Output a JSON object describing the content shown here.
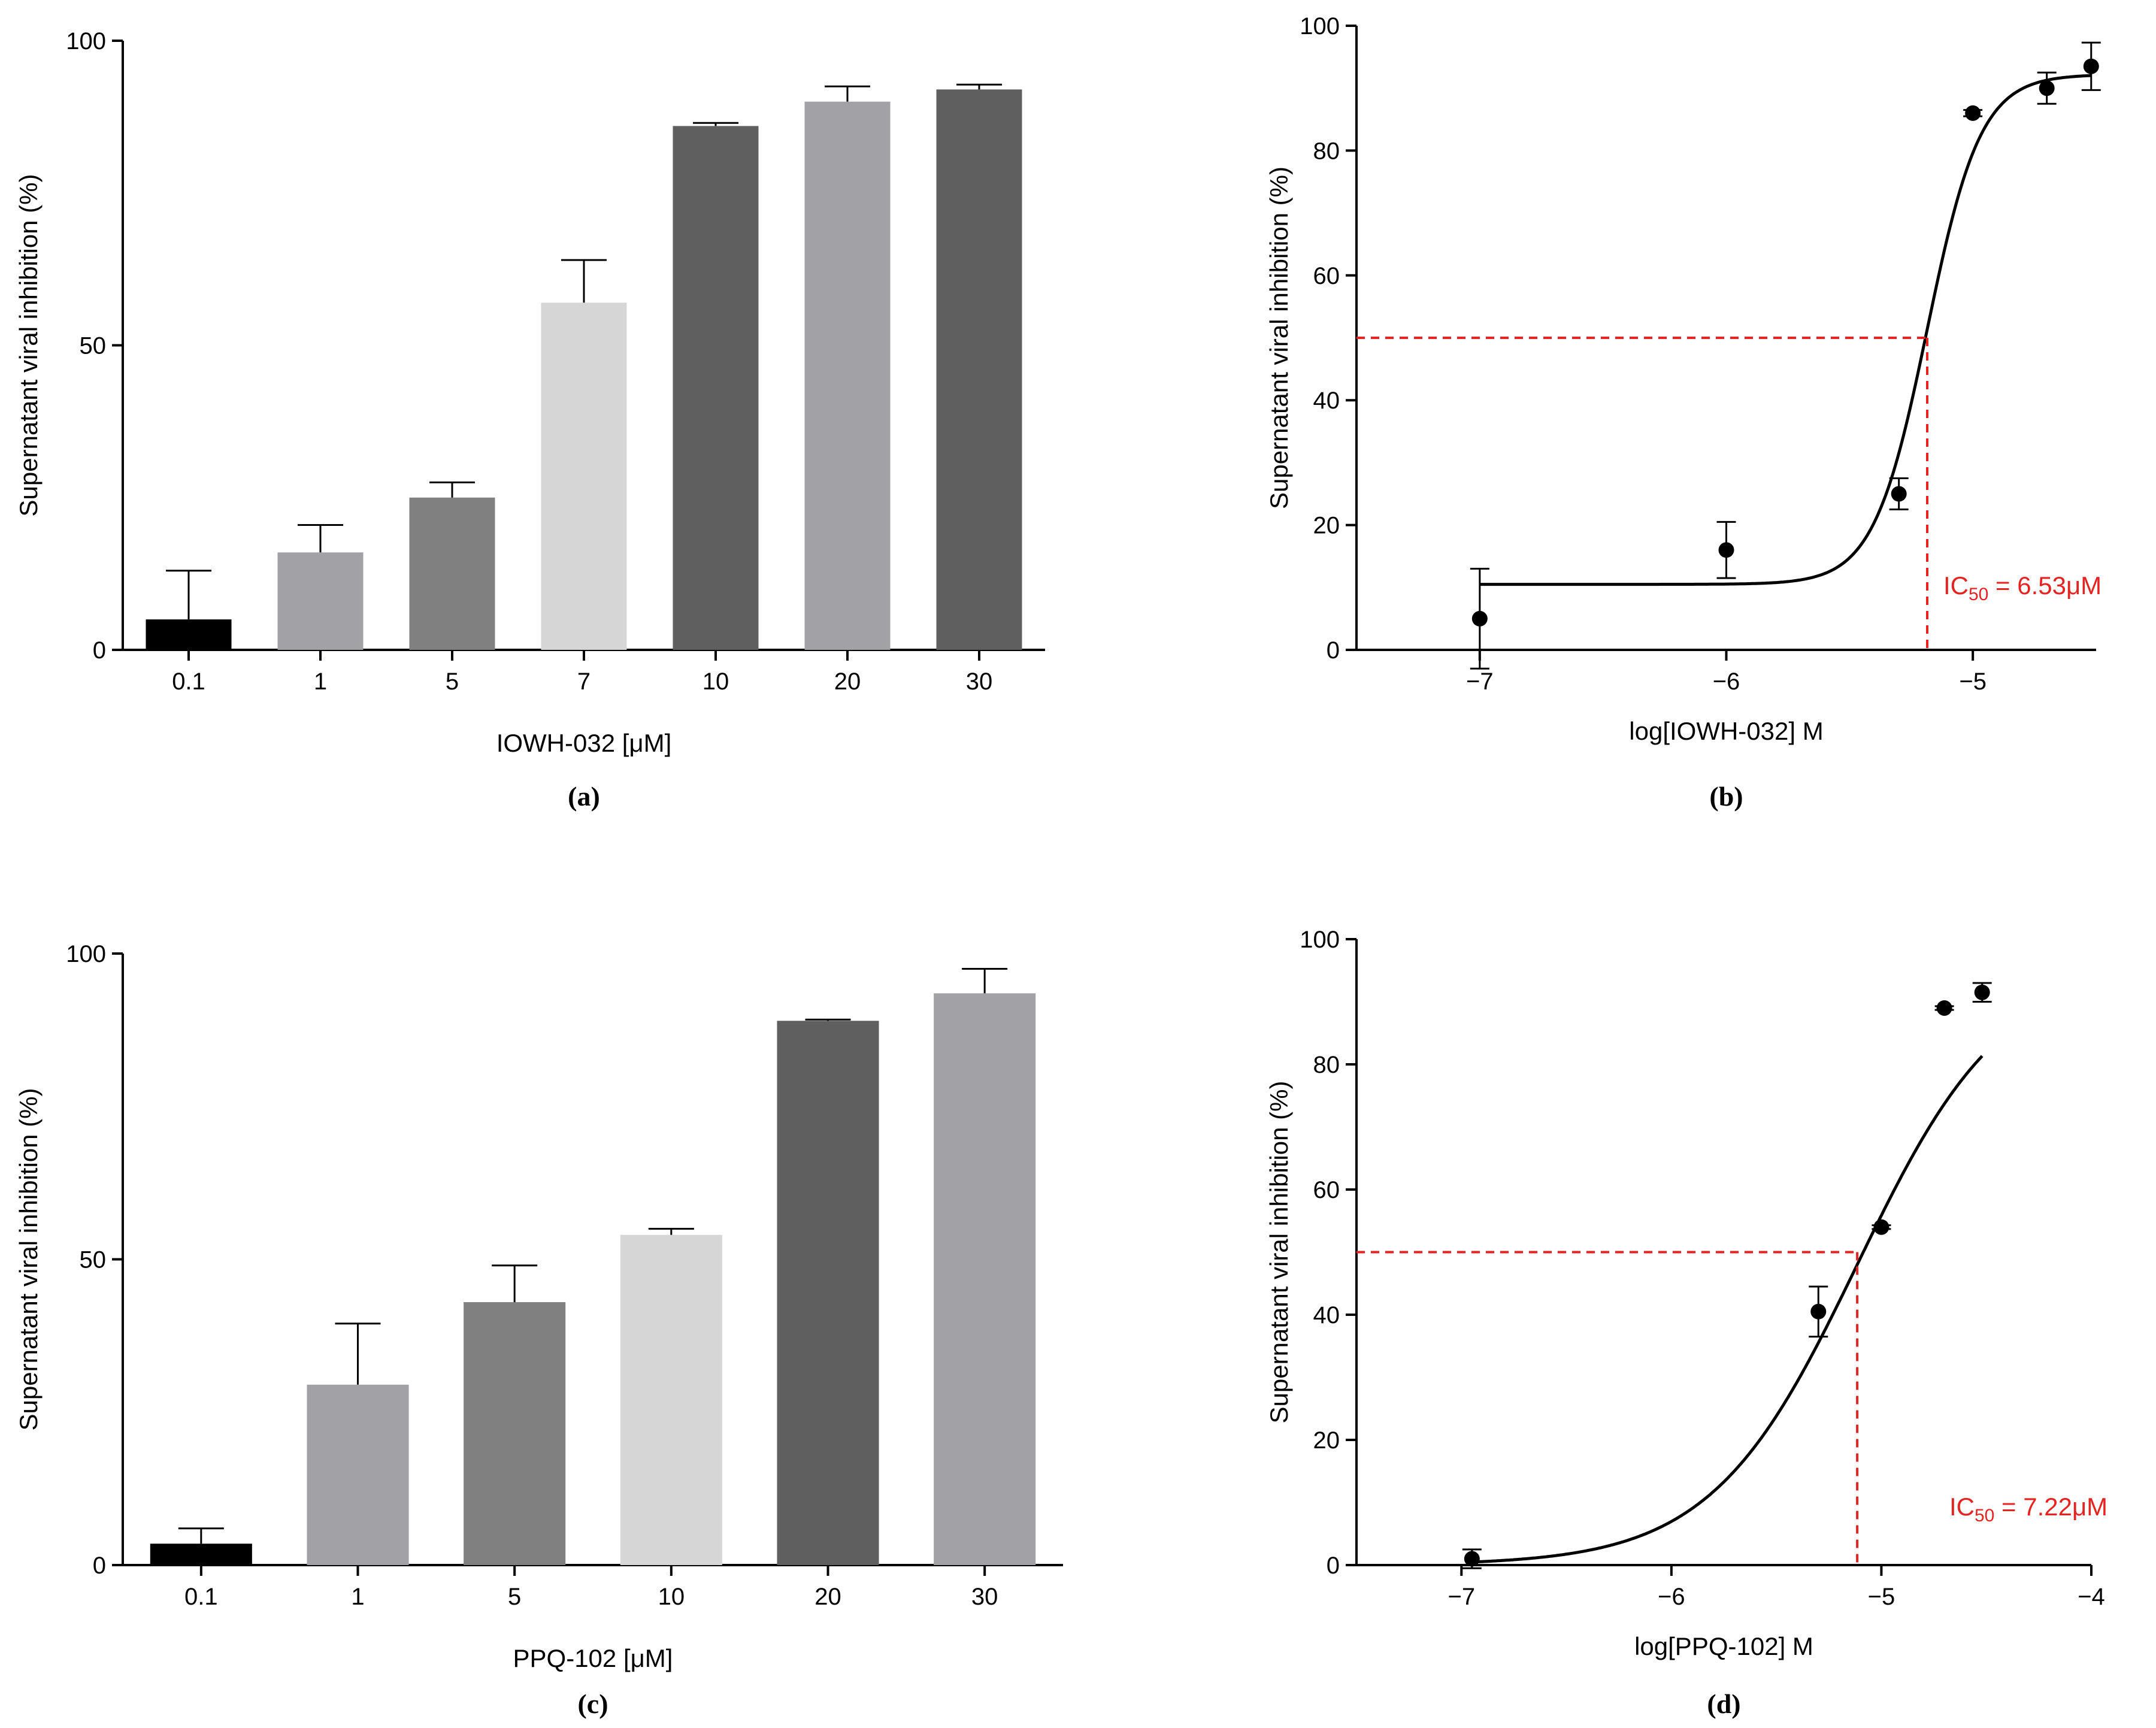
{
  "chart_data": [
    {
      "type": "bar",
      "panel_label": "(a)",
      "categories": [
        "0.1",
        "1",
        "5",
        "7",
        "10",
        "20",
        "30"
      ],
      "values": [
        5,
        16,
        25,
        57,
        86,
        90,
        92
      ],
      "errors": [
        8,
        4.5,
        2.5,
        7,
        0.5,
        2.5,
        0.8
      ],
      "bar_colors": [
        "#000000",
        "#a2a1a6",
        "#808080",
        "#d6d6d6",
        "#5f5f5f",
        "#a2a1a6",
        "#5f5f5f"
      ],
      "xlabel": "IOWH-032 [μM]",
      "ylabel": "Supernatant viral inhibition (%)",
      "ylim": [
        0,
        100
      ],
      "yticks": [
        "0",
        "50",
        "100"
      ]
    },
    {
      "type": "scatter",
      "panel_label": "(b)",
      "x": [
        -7,
        -6,
        -5.3,
        -5,
        -4.7,
        -4.52
      ],
      "y": [
        5,
        16,
        25,
        86,
        90,
        93.5
      ],
      "errors": [
        8,
        4.5,
        2.5,
        0.5,
        2.5,
        3.8
      ],
      "fit": {
        "bottom": 10.5,
        "top": 92.2,
        "log_ic50": -5.185,
        "hill": 4
      },
      "ic50_label": {
        "prefix": "IC",
        "sub": "50",
        "suffix": " = 6.53μM"
      },
      "xlabel": "log[IOWH-032] M",
      "ylabel": "Supernatant viral inhibition (%)",
      "xlim": [
        -7.5,
        -4.5
      ],
      "ylim": [
        0,
        100
      ],
      "xticks": [
        "−7",
        "−6",
        "−5"
      ],
      "yticks": [
        "0",
        "20",
        "40",
        "60",
        "80",
        "100"
      ]
    },
    {
      "type": "bar",
      "panel_label": "(c)",
      "categories": [
        "0.1",
        "1",
        "5",
        "10",
        "20",
        "30"
      ],
      "values": [
        3.5,
        29.5,
        43,
        54,
        89,
        93.5
      ],
      "errors": [
        2.5,
        10,
        6,
        1,
        0.2,
        4
      ],
      "bar_colors": [
        "#000000",
        "#a2a1a6",
        "#808080",
        "#d6d6d6",
        "#5f5f5f",
        "#a2a1a6"
      ],
      "xlabel": "PPQ-102 [μM]",
      "ylabel": "Supernatant viral inhibition (%)",
      "ylim": [
        0,
        100
      ],
      "yticks": [
        "0",
        "50",
        "100"
      ]
    },
    {
      "type": "scatter",
      "panel_label": "(d)",
      "x": [
        -6.95,
        -5.3,
        -5,
        -4.7,
        -4.52
      ],
      "y": [
        1,
        40.5,
        54,
        89,
        91.5
      ],
      "errors": [
        1.5,
        4,
        0.3,
        0.3,
        1.5
      ],
      "fit": {
        "bottom": 0,
        "top": 96,
        "log_ic50": -5.115,
        "hill": 1.25
      },
      "ic50_label": {
        "prefix": "IC",
        "sub": "50",
        "suffix": " = 7.22μM"
      },
      "xlabel": "log[PPQ-102] M",
      "ylabel": "Supernatant viral inhibition (%)",
      "xlim": [
        -7.5,
        -4
      ],
      "ylim": [
        0,
        100
      ],
      "xticks": [
        "−7",
        "−6",
        "−5",
        "−4"
      ],
      "yticks": [
        "0",
        "20",
        "40",
        "60",
        "80",
        "100"
      ]
    }
  ]
}
